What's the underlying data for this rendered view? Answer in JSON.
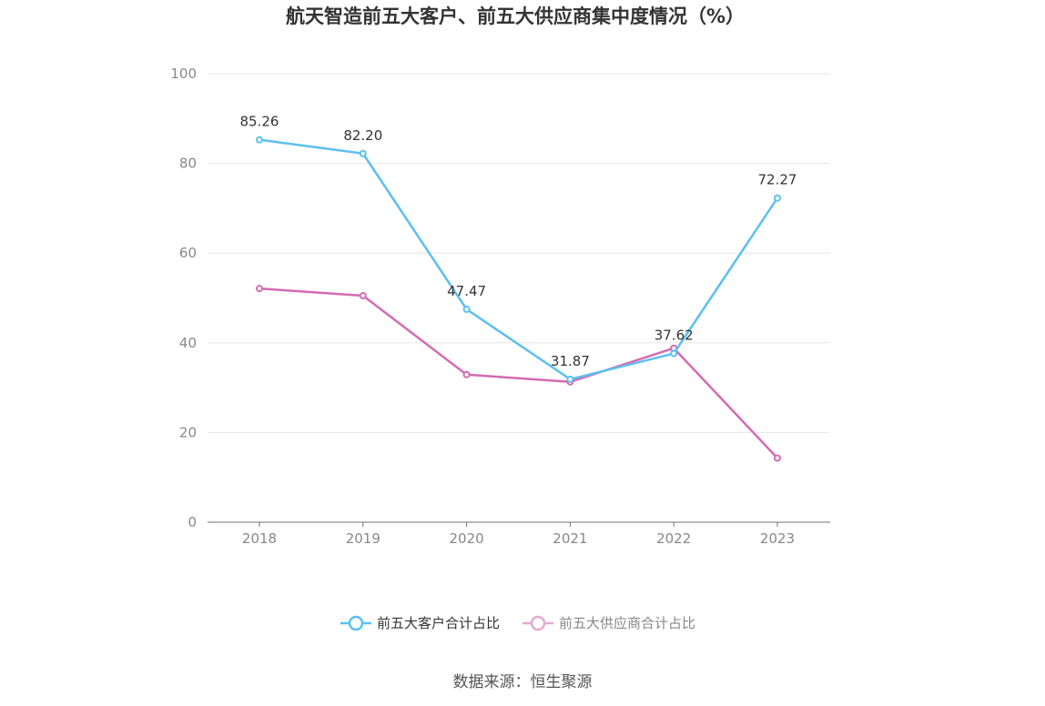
{
  "chart_data": {
    "type": "line",
    "title": "航天智造前五大客户、前五大供应商集中度情况（%）",
    "categories": [
      "2018",
      "2019",
      "2020",
      "2021",
      "2022",
      "2023"
    ],
    "ylim": [
      0,
      100
    ],
    "yticks": [
      0,
      20,
      40,
      60,
      80,
      100
    ],
    "grid": true,
    "legend_position": "bottom",
    "series": [
      {
        "name": "前五大客户合计占比",
        "color": "#5bc0f0",
        "values": [
          85.26,
          82.2,
          47.47,
          31.87,
          37.62,
          72.27
        ],
        "labels": [
          "85.26",
          "82.20",
          "47.47",
          "31.87",
          "37.62",
          "72.27"
        ]
      },
      {
        "name": "前五大供应商合计占比",
        "color": "#d46bb3",
        "legend_color": "#e8a8d3",
        "values": [
          52.1,
          50.5,
          32.9,
          31.3,
          38.8,
          14.3
        ]
      }
    ]
  },
  "source_text": "数据来源：恒生聚源"
}
